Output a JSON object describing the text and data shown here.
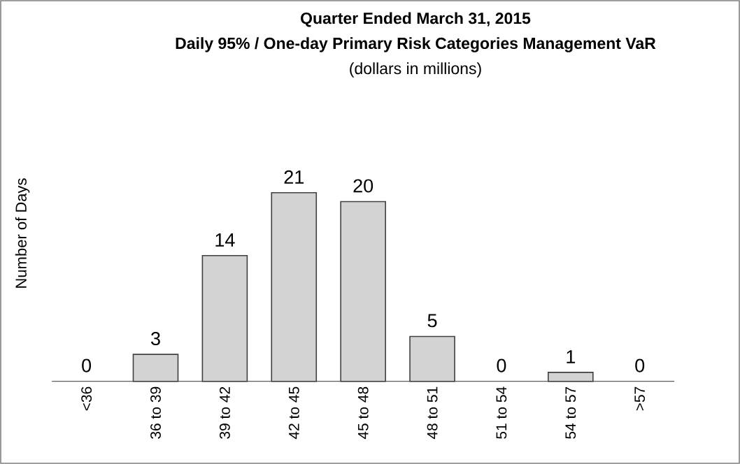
{
  "chart_data": {
    "type": "bar",
    "title": "Quarter Ended March 31, 2015",
    "subtitle": "Daily 95% / One-day Primary Risk Categories Management VaR",
    "annotations": [
      "(dollars in millions)"
    ],
    "ylabel": "Number of Days",
    "categories": [
      "<36",
      "36 to 39",
      "39 to 42",
      "42 to 45",
      "45 to 48",
      "48 to 51",
      "51 to 54",
      "54 to 57",
      ">57"
    ],
    "values": [
      0,
      3,
      14,
      21,
      20,
      5,
      0,
      1,
      0
    ],
    "color": "#d3d3d3",
    "data_labels": true
  }
}
